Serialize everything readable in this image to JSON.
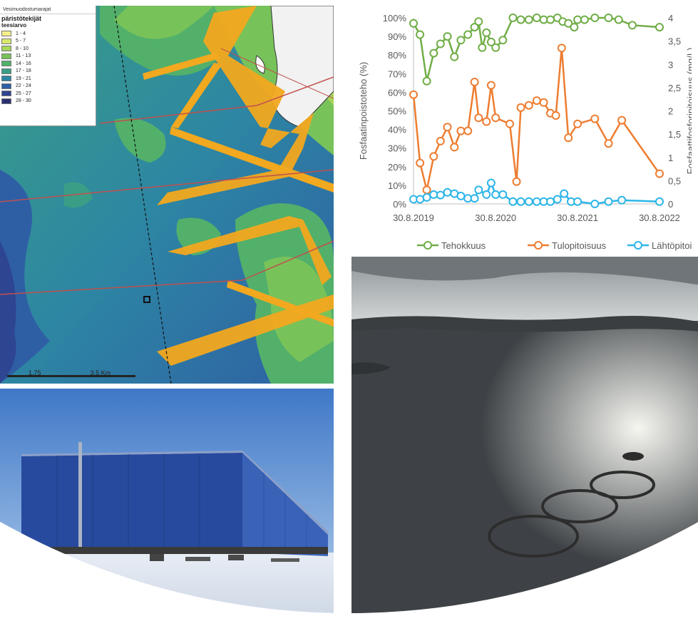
{
  "map": {
    "legend_top": "Vesimuodostumarajat",
    "legend_title": "päristötekijät",
    "legend_subtitle": "teesiarvo",
    "legend_items": [
      {
        "label": "1 - 4",
        "color": "#f5f08a"
      },
      {
        "label": "5 - 7",
        "color": "#d8e96b"
      },
      {
        "label": "8 - 10",
        "color": "#a8d65a"
      },
      {
        "label": "11 - 13",
        "color": "#78c25a"
      },
      {
        "label": "14 - 16",
        "color": "#52b06b"
      },
      {
        "label": "17 - 18",
        "color": "#3a9e86"
      },
      {
        "label": "19 - 21",
        "color": "#2d86a3"
      },
      {
        "label": "22 - 24",
        "color": "#2e5fa5"
      },
      {
        "label": "25 - 27",
        "color": "#2e4592"
      },
      {
        "label": "28 - 30",
        "color": "#2a2f72"
      }
    ],
    "scale_labels": [
      "1,75",
      "3,5 Km"
    ]
  },
  "chart_data": {
    "type": "line",
    "x_ticks": [
      "30.8.2019",
      "30.8.2020",
      "30.8.2021",
      "30.8.2022"
    ],
    "y_left_label": "Fosfaatinpoistoteho (%)",
    "y_left_ticks": [
      "0%",
      "10%",
      "20%",
      "30%",
      "40%",
      "50%",
      "60%",
      "70%",
      "80%",
      "90%",
      "100%"
    ],
    "y_right_label": "Fosfaattifosforipitoisuus (mg/L)",
    "y_right_ticks": [
      "0",
      "0,5",
      "1",
      "1,5",
      "2",
      "2,5",
      "3",
      "3,5",
      "4"
    ],
    "ylim_left": [
      0,
      100
    ],
    "ylim_right": [
      0,
      4
    ],
    "x_range": [
      "2019-08-30",
      "2022-08-30"
    ],
    "series": [
      {
        "name": "Tehokkuus",
        "axis": "left",
        "color": "#70ad47",
        "points": [
          [
            "2019-08-30",
            97
          ],
          [
            "2019-09-28",
            91
          ],
          [
            "2019-10-28",
            66
          ],
          [
            "2019-11-28",
            81
          ],
          [
            "2019-12-28",
            86
          ],
          [
            "2020-01-28",
            90
          ],
          [
            "2020-02-28",
            79
          ],
          [
            "2020-03-28",
            88
          ],
          [
            "2020-04-28",
            91
          ],
          [
            "2020-05-28",
            95
          ],
          [
            "2020-06-15",
            98
          ],
          [
            "2020-07-01",
            84
          ],
          [
            "2020-07-20",
            92
          ],
          [
            "2020-08-10",
            87
          ],
          [
            "2020-08-30",
            84
          ],
          [
            "2020-10-01",
            88
          ],
          [
            "2020-11-15",
            100
          ],
          [
            "2020-12-20",
            99
          ],
          [
            "2021-01-25",
            99
          ],
          [
            "2021-03-01",
            100
          ],
          [
            "2021-04-01",
            99
          ],
          [
            "2021-05-01",
            99
          ],
          [
            "2021-06-01",
            100
          ],
          [
            "2021-06-25",
            98
          ],
          [
            "2021-07-20",
            97
          ],
          [
            "2021-08-15",
            95
          ],
          [
            "2021-08-30",
            99
          ],
          [
            "2021-09-30",
            99
          ],
          [
            "2021-11-15",
            100
          ],
          [
            "2022-01-15",
            100
          ],
          [
            "2022-03-01",
            99
          ],
          [
            "2022-05-01",
            96
          ],
          [
            "2022-08-30",
            95
          ]
        ]
      },
      {
        "name": "Tulopitoisuus",
        "axis": "right",
        "color": "#ed7d31",
        "points": [
          [
            "2019-08-30",
            2.35
          ],
          [
            "2019-09-28",
            0.88
          ],
          [
            "2019-10-28",
            0.3
          ],
          [
            "2019-11-28",
            1.02
          ],
          [
            "2019-12-28",
            1.35
          ],
          [
            "2020-01-28",
            1.65
          ],
          [
            "2020-02-28",
            1.22
          ],
          [
            "2020-03-28",
            1.57
          ],
          [
            "2020-04-28",
            1.57
          ],
          [
            "2020-05-28",
            2.62
          ],
          [
            "2020-06-15",
            1.85
          ],
          [
            "2020-07-20",
            1.77
          ],
          [
            "2020-08-10",
            2.55
          ],
          [
            "2020-08-30",
            1.85
          ],
          [
            "2020-11-01",
            1.72
          ],
          [
            "2020-12-01",
            0.48
          ],
          [
            "2020-12-20",
            2.07
          ],
          [
            "2021-01-25",
            2.12
          ],
          [
            "2021-03-01",
            2.22
          ],
          [
            "2021-04-01",
            2.18
          ],
          [
            "2021-05-01",
            1.95
          ],
          [
            "2021-05-25",
            1.9
          ],
          [
            "2021-06-20",
            3.35
          ],
          [
            "2021-07-20",
            1.42
          ],
          [
            "2021-08-30",
            1.72
          ],
          [
            "2021-11-15",
            1.83
          ],
          [
            "2022-01-15",
            1.3
          ],
          [
            "2022-03-15",
            1.8
          ],
          [
            "2022-08-30",
            0.65
          ]
        ]
      },
      {
        "name": "Lähtöpitoisuus",
        "axis": "right",
        "color": "#2cb5e8",
        "points": [
          [
            "2019-08-30",
            0.1
          ],
          [
            "2019-09-28",
            0.1
          ],
          [
            "2019-10-28",
            0.14
          ],
          [
            "2019-11-28",
            0.2
          ],
          [
            "2019-12-28",
            0.19
          ],
          [
            "2020-01-28",
            0.25
          ],
          [
            "2020-02-28",
            0.22
          ],
          [
            "2020-03-28",
            0.17
          ],
          [
            "2020-04-28",
            0.12
          ],
          [
            "2020-05-28",
            0.12
          ],
          [
            "2020-06-15",
            0.3
          ],
          [
            "2020-07-20",
            0.2
          ],
          [
            "2020-08-10",
            0.45
          ],
          [
            "2020-08-30",
            0.2
          ],
          [
            "2020-10-01",
            0.2
          ],
          [
            "2020-11-15",
            0.05
          ],
          [
            "2020-12-20",
            0.05
          ],
          [
            "2021-01-25",
            0.05
          ],
          [
            "2021-03-01",
            0.05
          ],
          [
            "2021-04-01",
            0.05
          ],
          [
            "2021-05-01",
            0.05
          ],
          [
            "2021-06-01",
            0.1
          ],
          [
            "2021-07-01",
            0.22
          ],
          [
            "2021-08-01",
            0.05
          ],
          [
            "2021-08-30",
            0.05
          ],
          [
            "2021-11-15",
            0.0
          ],
          [
            "2022-01-15",
            0.05
          ],
          [
            "2022-03-15",
            0.08
          ],
          [
            "2022-08-30",
            0.05
          ]
        ]
      }
    ],
    "legend_position": "bottom"
  },
  "photos": {
    "building": "blue-industrial-building",
    "lake": "aerial-lake-fish-farm"
  },
  "colors": {
    "sea_deep": "#2e4592",
    "sea_mid": "#2d86a3",
    "shallow": "#78c25a",
    "route_orange": "#f2a81f",
    "border_red": "#c0504d"
  }
}
